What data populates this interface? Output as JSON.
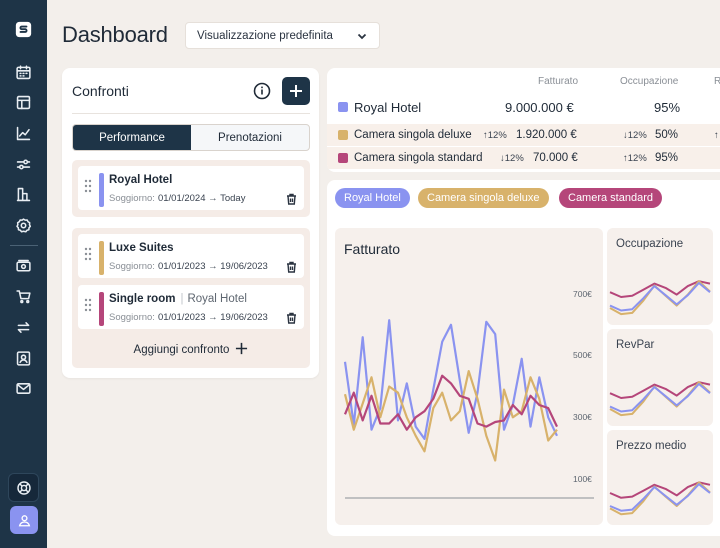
{
  "header": {
    "title": "Dashboard",
    "view_select_value": "Visualizzazione predefinita"
  },
  "sidebar": {
    "icons": [
      "logo-icon",
      "calendar-icon",
      "layout-icon",
      "line-chart-icon",
      "sliders-icon",
      "building-chart-icon",
      "settings-icon",
      "payments-icon",
      "cart-icon",
      "exchange-icon",
      "contact-icon",
      "mail-icon",
      "help-icon",
      "user-icon"
    ]
  },
  "comparisons": {
    "title": "Confronti",
    "tabs": [
      "Performance",
      "Prenotazioni"
    ],
    "active_tab": "Performance",
    "stay_label": "Soggiorno:",
    "add_label": "Aggiungi confronto",
    "items": [
      {
        "name": "Royal Hotel",
        "sub": "",
        "dates": "01/01/2024 → Today",
        "color": "#8a93f0"
      },
      {
        "name": "Luxe Suites",
        "sub": "",
        "dates": "01/01/2023 → 19/06/2023",
        "color": "#d8b26b"
      },
      {
        "name": "Single room",
        "sub": "Royal Hotel",
        "dates": "01/01/2023 → 19/06/2023",
        "color": "#b5467a"
      }
    ]
  },
  "metrics_table": {
    "columns": [
      "Fatturato",
      "Occupazione",
      "R"
    ],
    "rows": [
      {
        "name": "Royal Hotel",
        "color": "#8a93f0",
        "revenue": "9.000.000 €",
        "revenue_delta": "",
        "occupancy": "95%",
        "occupancy_delta": ""
      },
      {
        "name": "Camera singola deluxe",
        "color": "#d8b26b",
        "revenue": "1.920.000 €",
        "revenue_delta": "↑12%",
        "occupancy": "50%",
        "occupancy_delta": "↓12%"
      },
      {
        "name": "Camera singola standard",
        "color": "#b5467a",
        "revenue": "70.000 €",
        "revenue_delta": "↓12%",
        "occupancy": "95%",
        "occupancy_delta": "↑12%"
      }
    ]
  },
  "legend_chips": [
    {
      "label": "Royal Hotel",
      "color": "#8a93f0"
    },
    {
      "label": "Camera singola deluxe",
      "color": "#d8b26b"
    },
    {
      "label": "Camera standard",
      "color": "#b5467a"
    }
  ],
  "mini_charts": [
    {
      "title": "Occupazione"
    },
    {
      "title": "RevPar"
    },
    {
      "title": "Prezzo medio"
    }
  ],
  "chart_data": {
    "type": "line",
    "title": "Fatturato",
    "y_tick_labels": [
      "700€",
      "500€",
      "300€",
      "100€"
    ],
    "y_ticks": [
      700,
      500,
      300,
      100
    ],
    "ylim": [
      40,
      760
    ],
    "x": [
      1,
      2,
      3,
      4,
      5,
      6,
      7,
      8,
      9,
      10,
      11,
      12,
      13,
      14,
      15,
      16,
      17,
      18,
      19,
      20,
      21,
      22,
      23,
      24,
      25
    ],
    "grid": false,
    "series": [
      {
        "name": "Royal Hotel",
        "color": "#8a93f0",
        "values": [
          480,
          275,
          560,
          260,
          330,
          615,
          290,
          410,
          270,
          230,
          390,
          545,
          600,
          420,
          250,
          380,
          610,
          570,
          260,
          340,
          490,
          270,
          430,
          300,
          240
        ]
      },
      {
        "name": "Camera singola deluxe",
        "color": "#d8b26b",
        "values": [
          375,
          260,
          345,
          430,
          300,
          400,
          380,
          300,
          240,
          190,
          330,
          380,
          290,
          320,
          450,
          360,
          240,
          160,
          390,
          300,
          320,
          430,
          360,
          225,
          260
        ]
      },
      {
        "name": "Camera standard",
        "color": "#b5467a",
        "values": [
          310,
          380,
          290,
          370,
          280,
          280,
          310,
          260,
          300,
          320,
          360,
          435,
          410,
          370,
          360,
          280,
          270,
          285,
          290,
          340,
          310,
          370,
          340,
          330,
          270
        ]
      }
    ]
  }
}
